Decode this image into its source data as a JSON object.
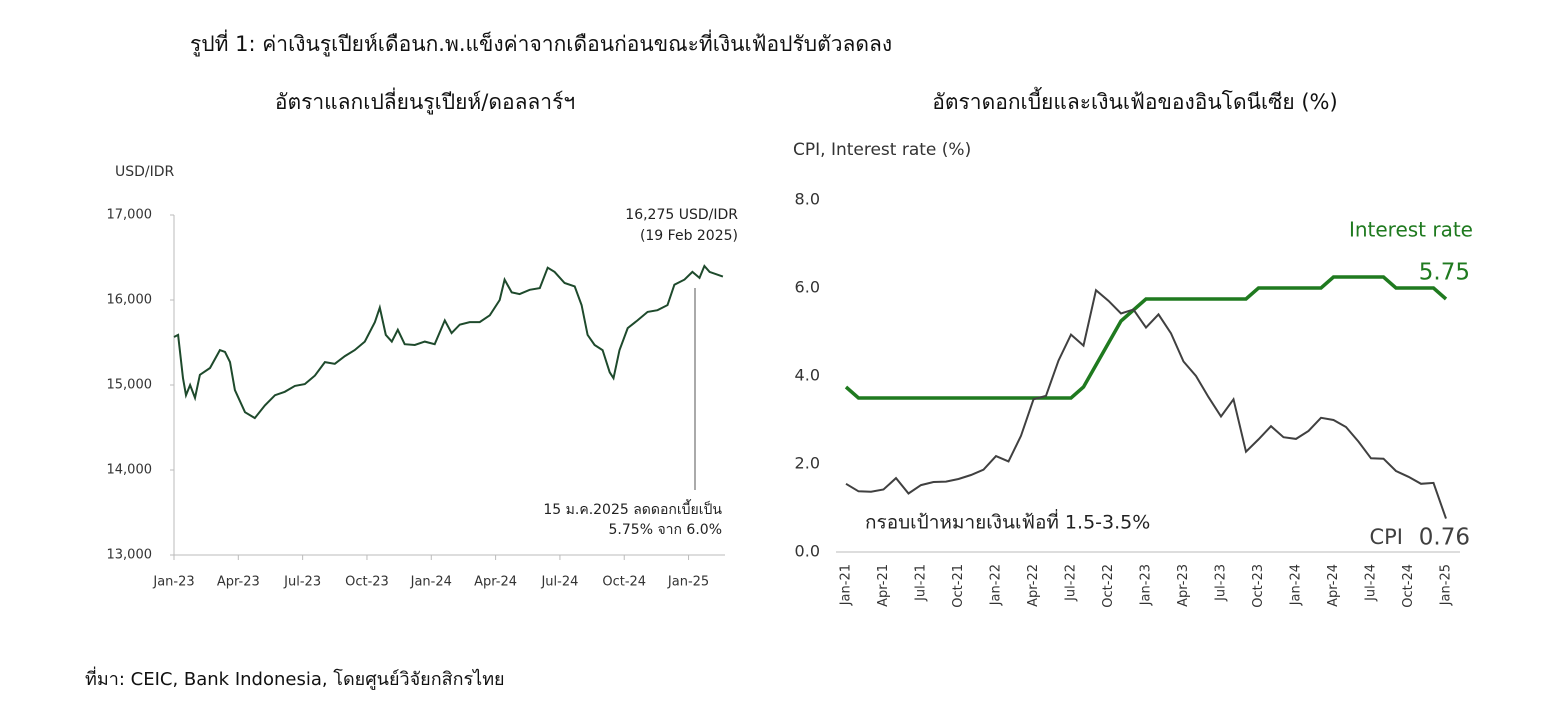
{
  "title": "รูปที่ 1: ค่าเงินรูเปียห์เดือนก.พ.แข็งค่าจากเดือนก่อนขณะที่เงินเฟ้อปรับตัวลดลง",
  "source": "ที่มา: CEIC, Bank Indonesia, โดยศูนย์วิจัยกสิกรไทย",
  "chart_data": [
    {
      "type": "line",
      "title": "อัตราแลกเปลี่ยนรูเปียห์/ดอลลาร์ฯ",
      "y_label": "USD/IDR",
      "color": "#1e4a2c",
      "annotations": [
        "16,275 USD/IDR",
        "(19 Feb 2025)",
        "15 ม.ค.2025 ลดดอกเบี้ยเป็น",
        "5.75% จาก 6.0%"
      ],
      "x": [
        0,
        0.19,
        0.42,
        0.56,
        0.75,
        0.98,
        1.21,
        1.68,
        2.14,
        2.38,
        2.61,
        2.84,
        3.31,
        3.77,
        4.24,
        4.71,
        5.17,
        5.64,
        6.1,
        6.57,
        7.04,
        7.5,
        7.97,
        8.43,
        8.9,
        9.37,
        9.6,
        9.88,
        10.16,
        10.44,
        10.76,
        11.23,
        11.7,
        12.16,
        12.63,
        12.95,
        13.33,
        13.79,
        14.26,
        14.73,
        15.19,
        15.42,
        15.75,
        16.12,
        16.59,
        17.06,
        17.43,
        17.75,
        18.22,
        18.69,
        19.01,
        19.29,
        19.62,
        19.99,
        20.32,
        20.5,
        20.78,
        21.16,
        21.62,
        22.09,
        22.55,
        23.02,
        23.34,
        23.81,
        24.18,
        24.51,
        24.74,
        24.98,
        25.6
      ],
      "values": [
        15565,
        15590,
        15080,
        14880,
        15000,
        14850,
        15120,
        15200,
        15410,
        15390,
        15270,
        14940,
        14680,
        14610,
        14760,
        14880,
        14920,
        14990,
        15010,
        15110,
        15270,
        15250,
        15340,
        15410,
        15510,
        15740,
        15910,
        15590,
        15510,
        15650,
        15480,
        15470,
        15510,
        15480,
        15760,
        15610,
        15710,
        15740,
        15740,
        15820,
        16000,
        16240,
        16090,
        16070,
        16120,
        16140,
        16380,
        16330,
        16200,
        16160,
        15940,
        15590,
        15470,
        15410,
        15150,
        15080,
        15410,
        15670,
        15760,
        15860,
        15880,
        15940,
        16180,
        16240,
        16330,
        16260,
        16400,
        16330,
        16275
      ],
      "xlim": [
        0,
        25.7
      ],
      "xticks": [
        {
          "value": 0,
          "label": "Jan-23"
        },
        {
          "value": 3,
          "label": "Apr-23"
        },
        {
          "value": 6,
          "label": "Jul-23"
        },
        {
          "value": 9,
          "label": "Oct-23"
        },
        {
          "value": 12,
          "label": "Jan-24"
        },
        {
          "value": 15,
          "label": "Apr-24"
        },
        {
          "value": 18,
          "label": "Jul-24"
        },
        {
          "value": 21,
          "label": "Oct-24"
        },
        {
          "value": 24,
          "label": "Jan-25"
        }
      ],
      "ylim": [
        13000,
        17000
      ],
      "yticks": [
        {
          "value": 13000,
          "label": "13,000"
        },
        {
          "value": 14000,
          "label": "14,000"
        },
        {
          "value": 15000,
          "label": "15,000"
        },
        {
          "value": 16000,
          "label": "16,000"
        },
        {
          "value": 17000,
          "label": "17,000"
        }
      ]
    },
    {
      "type": "line",
      "title": "อัตราดอกเบี้ยและเงินเฟ้อของอินโดนีเซีย (%)",
      "y_label": "CPI, Interest rate (%)",
      "annotations": [
        "กรอบเป้าหมายเงินเฟ้อที่ 1.5-3.5%"
      ],
      "categories": [
        "Jan-21",
        null,
        null,
        "Apr-21",
        null,
        null,
        "Jul-21",
        null,
        null,
        "Oct-21",
        null,
        null,
        "Jan-22",
        null,
        null,
        "Apr-22",
        null,
        null,
        "Jul-22",
        null,
        null,
        "Oct-22",
        null,
        null,
        "Jan-23",
        null,
        null,
        "Apr-23",
        null,
        null,
        "Jul-23",
        null,
        null,
        "Oct-23",
        null,
        null,
        "Jan-24",
        null,
        null,
        "Apr-24",
        null,
        null,
        "Jul-24",
        null,
        null,
        "Oct-24",
        null,
        null,
        "Jan-25"
      ],
      "series": [
        {
          "name": "Interest rate",
          "color": "#1f7a1f",
          "values": [
            3.75,
            3.5,
            3.5,
            3.5,
            3.5,
            3.5,
            3.5,
            3.5,
            3.5,
            3.5,
            3.5,
            3.5,
            3.5,
            3.5,
            3.5,
            3.5,
            3.5,
            3.5,
            3.5,
            3.75,
            4.25,
            4.75,
            5.25,
            5.5,
            5.75,
            5.75,
            5.75,
            5.75,
            5.75,
            5.75,
            5.75,
            5.75,
            5.75,
            6.0,
            6.0,
            6.0,
            6.0,
            6.0,
            6.0,
            6.25,
            6.25,
            6.25,
            6.25,
            6.25,
            6.0,
            6.0,
            6.0,
            6.0,
            5.75
          ]
        },
        {
          "name": "CPI",
          "color": "#404040",
          "values": [
            1.55,
            1.38,
            1.37,
            1.42,
            1.68,
            1.33,
            1.52,
            1.59,
            1.6,
            1.66,
            1.75,
            1.87,
            2.18,
            2.06,
            2.64,
            3.47,
            3.55,
            4.35,
            4.94,
            4.69,
            5.95,
            5.71,
            5.42,
            5.51,
            5.1,
            5.4,
            4.97,
            4.33,
            4.0,
            3.52,
            3.08,
            3.47,
            2.28,
            2.56,
            2.86,
            2.61,
            2.57,
            2.75,
            3.05,
            3.0,
            2.84,
            2.51,
            2.13,
            2.12,
            1.84,
            1.71,
            1.55,
            1.57,
            0.76
          ]
        }
      ],
      "ylim": [
        0,
        8
      ],
      "yticks": [
        {
          "value": 0,
          "label": "0.0"
        },
        {
          "value": 2,
          "label": "2.0"
        },
        {
          "value": 4,
          "label": "4.0"
        },
        {
          "value": 6,
          "label": "6.0"
        },
        {
          "value": 8,
          "label": "8.0"
        }
      ]
    }
  ]
}
